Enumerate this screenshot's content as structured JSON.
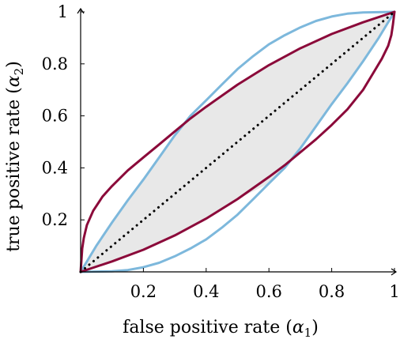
{
  "chart_data": {
    "type": "line",
    "xlabel": {
      "text": "false positive rate (",
      "symbol": "α",
      "sub": "1",
      "close": ")"
    },
    "ylabel": {
      "text": "true positive rate (",
      "symbol": "α",
      "sub": "2",
      "close": ")"
    },
    "xlim": [
      0,
      1
    ],
    "ylim": [
      0,
      1
    ],
    "xticks": [
      {
        "value": 0.2,
        "label": "0.2"
      },
      {
        "value": 0.4,
        "label": "0.4"
      },
      {
        "value": 0.6,
        "label": "0.6"
      },
      {
        "value": 0.8,
        "label": "0.8"
      },
      {
        "value": 1,
        "label": "1"
      }
    ],
    "yticks": [
      {
        "value": 0.2,
        "label": "0.2"
      },
      {
        "value": 0.4,
        "label": "0.4"
      },
      {
        "value": 0.6,
        "label": "0.6"
      },
      {
        "value": 0.8,
        "label": "0.8"
      },
      {
        "value": 1,
        "label": "1"
      }
    ],
    "colors": {
      "blue": "#7db8dc",
      "crimson": "#8b0a3a",
      "fill": "#e8e8e8",
      "diagonal": "#000000"
    },
    "series": [
      {
        "color": "blue",
        "points": [
          [
            0,
            0
          ],
          [
            0.05,
            0.1
          ],
          [
            0.1,
            0.19
          ],
          [
            0.15,
            0.275
          ],
          [
            0.2,
            0.355
          ],
          [
            0.25,
            0.44
          ],
          [
            0.3,
            0.525
          ],
          [
            0.35,
            0.6
          ],
          [
            0.4,
            0.66
          ],
          [
            0.45,
            0.72
          ],
          [
            0.5,
            0.78
          ],
          [
            0.55,
            0.83
          ],
          [
            0.6,
            0.875
          ],
          [
            0.65,
            0.91
          ],
          [
            0.7,
            0.94
          ],
          [
            0.75,
            0.965
          ],
          [
            0.8,
            0.982
          ],
          [
            0.85,
            0.993
          ],
          [
            0.9,
            0.998
          ],
          [
            1,
            1
          ]
        ]
      },
      {
        "color": "blue",
        "points": [
          [
            0,
            0
          ],
          [
            0.1,
            0.002
          ],
          [
            0.15,
            0.007
          ],
          [
            0.2,
            0.018
          ],
          [
            0.25,
            0.035
          ],
          [
            0.3,
            0.06
          ],
          [
            0.35,
            0.09
          ],
          [
            0.4,
            0.125
          ],
          [
            0.45,
            0.17
          ],
          [
            0.5,
            0.22
          ],
          [
            0.55,
            0.28
          ],
          [
            0.6,
            0.34
          ],
          [
            0.65,
            0.4
          ],
          [
            0.7,
            0.475
          ],
          [
            0.75,
            0.56
          ],
          [
            0.8,
            0.645
          ],
          [
            0.85,
            0.725
          ],
          [
            0.9,
            0.81
          ],
          [
            0.95,
            0.9
          ],
          [
            1,
            1
          ]
        ]
      },
      {
        "color": "crimson",
        "points": [
          [
            0,
            0
          ],
          [
            0.005,
            0.09
          ],
          [
            0.01,
            0.13
          ],
          [
            0.02,
            0.18
          ],
          [
            0.04,
            0.235
          ],
          [
            0.07,
            0.29
          ],
          [
            0.1,
            0.33
          ],
          [
            0.15,
            0.39
          ],
          [
            0.2,
            0.44
          ],
          [
            0.25,
            0.49
          ],
          [
            0.3,
            0.54
          ],
          [
            0.35,
            0.59
          ],
          [
            0.4,
            0.635
          ],
          [
            0.5,
            0.72
          ],
          [
            0.6,
            0.795
          ],
          [
            0.7,
            0.86
          ],
          [
            0.8,
            0.915
          ],
          [
            0.9,
            0.96
          ],
          [
            1,
            1
          ]
        ]
      },
      {
        "color": "crimson",
        "points": [
          [
            0,
            0
          ],
          [
            0.1,
            0.04
          ],
          [
            0.2,
            0.085
          ],
          [
            0.3,
            0.14
          ],
          [
            0.4,
            0.205
          ],
          [
            0.5,
            0.28
          ],
          [
            0.6,
            0.365
          ],
          [
            0.65,
            0.41
          ],
          [
            0.7,
            0.46
          ],
          [
            0.75,
            0.51
          ],
          [
            0.8,
            0.565
          ],
          [
            0.85,
            0.625
          ],
          [
            0.9,
            0.7
          ],
          [
            0.93,
            0.76
          ],
          [
            0.96,
            0.82
          ],
          [
            0.98,
            0.87
          ],
          [
            0.99,
            0.91
          ],
          [
            0.995,
            0.95
          ],
          [
            1,
            1
          ]
        ]
      }
    ],
    "shaded_region": {
      "upper": [
        [
          0,
          0
        ],
        [
          0.05,
          0.1
        ],
        [
          0.1,
          0.19
        ],
        [
          0.15,
          0.275
        ],
        [
          0.2,
          0.355
        ],
        [
          0.25,
          0.44
        ],
        [
          0.3,
          0.525
        ],
        [
          0.35,
          0.59
        ],
        [
          0.4,
          0.635
        ],
        [
          0.5,
          0.72
        ],
        [
          0.6,
          0.795
        ],
        [
          0.7,
          0.86
        ],
        [
          0.8,
          0.915
        ],
        [
          0.9,
          0.96
        ],
        [
          1,
          1
        ]
      ],
      "lower": [
        [
          0,
          0
        ],
        [
          0.1,
          0.04
        ],
        [
          0.2,
          0.085
        ],
        [
          0.3,
          0.14
        ],
        [
          0.4,
          0.205
        ],
        [
          0.5,
          0.28
        ],
        [
          0.6,
          0.34
        ],
        [
          0.65,
          0.4
        ],
        [
          0.7,
          0.475
        ],
        [
          0.75,
          0.56
        ],
        [
          0.8,
          0.645
        ],
        [
          0.85,
          0.725
        ],
        [
          0.9,
          0.81
        ],
        [
          0.95,
          0.9
        ],
        [
          1,
          1
        ]
      ]
    },
    "diagonal": {
      "style": "dotted",
      "points": [
        [
          0,
          0
        ],
        [
          1,
          1
        ]
      ]
    },
    "grid": false,
    "legend": "none"
  }
}
